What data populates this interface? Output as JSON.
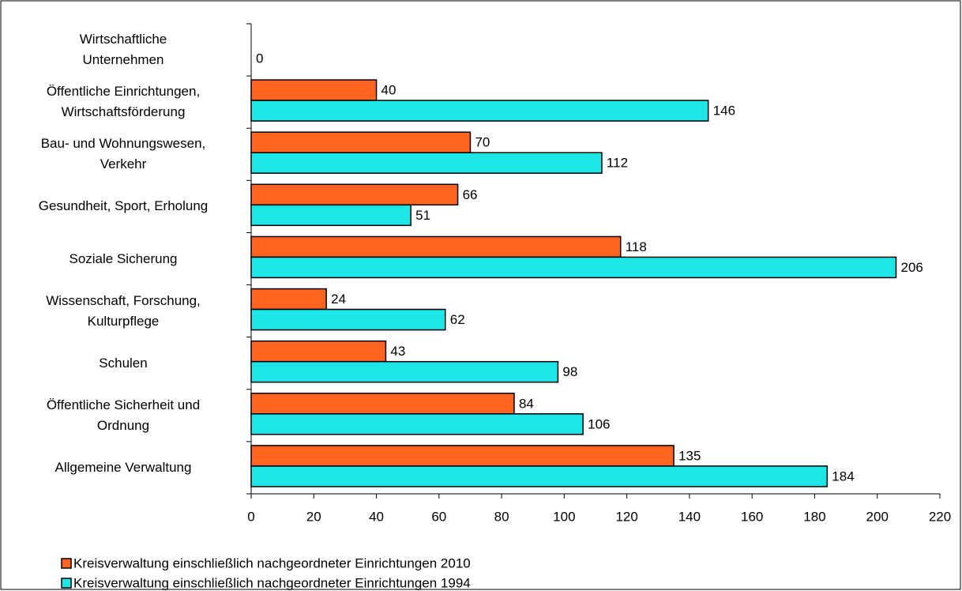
{
  "chart_data": {
    "type": "bar",
    "orientation": "horizontal",
    "categories": [
      "Wirtschaftliche\nUnternehmen",
      "Öffentliche Einrichtungen,\nWirtschaftsförderung",
      "Bau- und Wohnungswesen,\nVerkehr",
      "Gesundheit, Sport, Erholung",
      "Soziale Sicherung",
      "Wissenschaft, Forschung,\nKulturpflege",
      "Schulen",
      "Öffentliche Sicherheit und\nOrdnung",
      "Allgemeine Verwaltung"
    ],
    "series": [
      {
        "name": "Kreisverwaltung einschließlich nachgeordneter Einrichtungen 2010",
        "color": "#ff6420",
        "values": [
          null,
          40,
          70,
          66,
          118,
          24,
          43,
          84,
          135
        ]
      },
      {
        "name": "Kreisverwaltung einschließlich nachgeordneter Einrichtungen 1994",
        "color": "#1ee6e6",
        "values": [
          0,
          146,
          112,
          51,
          206,
          62,
          98,
          106,
          184
        ]
      }
    ],
    "xlim": [
      0,
      220
    ],
    "xticks": [
      0,
      20,
      40,
      60,
      80,
      100,
      120,
      140,
      160,
      180,
      200,
      220
    ],
    "legend": "bottom-left"
  }
}
